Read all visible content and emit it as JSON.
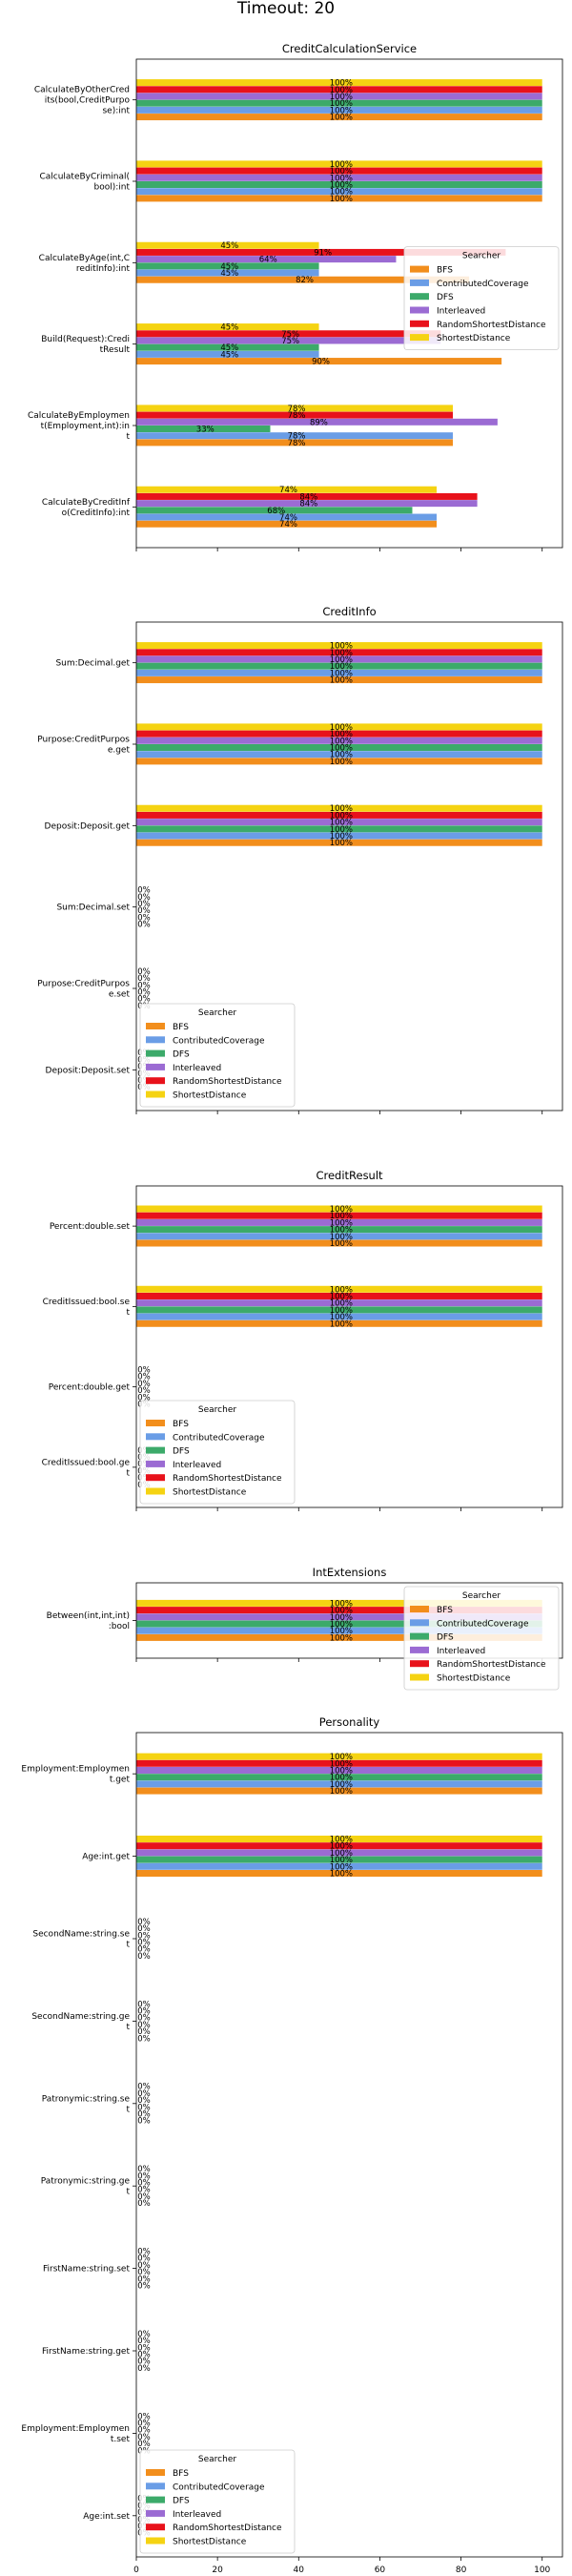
{
  "suptitle": "Timeout: 20",
  "legend_title": "Searcher",
  "series_names": [
    "BFS",
    "ContributedCoverage",
    "DFS",
    "Interleaved",
    "RandomShortestDistance",
    "ShortestDistance"
  ],
  "series_colors": [
    "#f28e1c",
    "#6a9de6",
    "#3caa6a",
    "#9b6bd3",
    "#e8121b",
    "#f5d312"
  ],
  "chart_data": [
    {
      "type": "bar",
      "title": "CreditCalculationService",
      "legend_position": "center-right",
      "categories": [
        "CalculateByOtherCredits(bool,CreditPurpose):int",
        "CalculateByCriminal(bool):int",
        "CalculateByAge(int,CreditInfo):int",
        "Build(Request):CreditResult",
        "CalculateByEmployment(Employment,int):int",
        "CalculateByCreditInfo(CreditInfo):int"
      ],
      "category_lines": [
        [
          "CalculateByOtherCred",
          "its(bool,CreditPurpo",
          "se):int"
        ],
        [
          "CalculateByCriminal(",
          "bool):int"
        ],
        [
          "CalculateByAge(int,C",
          "reditInfo):int"
        ],
        [
          "Build(Request):Credi",
          "tResult"
        ],
        [
          "CalculateByEmploymen",
          "t(Employment,int):in",
          "t"
        ],
        [
          "CalculateByCreditInf",
          "o(CreditInfo):int"
        ]
      ],
      "series": [
        {
          "name": "BFS",
          "values": [
            100,
            100,
            82,
            90,
            78,
            74
          ]
        },
        {
          "name": "ContributedCoverage",
          "values": [
            100,
            100,
            45,
            45,
            78,
            74
          ]
        },
        {
          "name": "DFS",
          "values": [
            100,
            100,
            45,
            45,
            33,
            68
          ]
        },
        {
          "name": "Interleaved",
          "values": [
            100,
            100,
            64,
            75,
            89,
            84
          ]
        },
        {
          "name": "RandomShortestDistance",
          "values": [
            100,
            100,
            91,
            75,
            78,
            84
          ]
        },
        {
          "name": "ShortestDistance",
          "values": [
            100,
            100,
            45,
            45,
            78,
            74
          ]
        }
      ]
    },
    {
      "type": "bar",
      "title": "CreditInfo",
      "legend_position": "lower-left",
      "categories": [
        "Sum:Decimal.get",
        "Purpose:CreditPurpose.get",
        "Deposit:Deposit.get",
        "Sum:Decimal.set",
        "Purpose:CreditPurpose.set",
        "Deposit:Deposit.set"
      ],
      "category_lines": [
        [
          "Sum:Decimal.get"
        ],
        [
          "Purpose:CreditPurpos",
          "e.get"
        ],
        [
          "Deposit:Deposit.get"
        ],
        [
          "Sum:Decimal.set"
        ],
        [
          "Purpose:CreditPurpos",
          "e.set"
        ],
        [
          "Deposit:Deposit.set"
        ]
      ],
      "series": [
        {
          "name": "BFS",
          "values": [
            100,
            100,
            100,
            0,
            0,
            0
          ]
        },
        {
          "name": "ContributedCoverage",
          "values": [
            100,
            100,
            100,
            0,
            0,
            0
          ]
        },
        {
          "name": "DFS",
          "values": [
            100,
            100,
            100,
            0,
            0,
            0
          ]
        },
        {
          "name": "Interleaved",
          "values": [
            100,
            100,
            100,
            0,
            0,
            0
          ]
        },
        {
          "name": "RandomShortestDistance",
          "values": [
            100,
            100,
            100,
            0,
            0,
            0
          ]
        },
        {
          "name": "ShortestDistance",
          "values": [
            100,
            100,
            100,
            0,
            0,
            0
          ]
        }
      ]
    },
    {
      "type": "bar",
      "title": "CreditResult",
      "legend_position": "lower-left",
      "categories": [
        "Percent:double.set",
        "CreditIssued:bool.set",
        "Percent:double.get",
        "CreditIssued:bool.get"
      ],
      "category_lines": [
        [
          "Percent:double.set"
        ],
        [
          "CreditIssued:bool.se",
          "t"
        ],
        [
          "Percent:double.get"
        ],
        [
          "CreditIssued:bool.ge",
          "t"
        ]
      ],
      "series": [
        {
          "name": "BFS",
          "values": [
            100,
            100,
            0,
            0
          ]
        },
        {
          "name": "ContributedCoverage",
          "values": [
            100,
            100,
            0,
            0
          ]
        },
        {
          "name": "DFS",
          "values": [
            100,
            100,
            0,
            0
          ]
        },
        {
          "name": "Interleaved",
          "values": [
            100,
            100,
            0,
            0
          ]
        },
        {
          "name": "RandomShortestDistance",
          "values": [
            100,
            100,
            0,
            0
          ]
        },
        {
          "name": "ShortestDistance",
          "values": [
            100,
            100,
            0,
            0
          ]
        }
      ]
    },
    {
      "type": "bar",
      "title": "IntExtensions",
      "legend_position": "upper-right",
      "categories": [
        "Between(int,int,int):bool"
      ],
      "category_lines": [
        [
          "Between(int,int,int)",
          ":bool"
        ]
      ],
      "series": [
        {
          "name": "BFS",
          "values": [
            100
          ]
        },
        {
          "name": "ContributedCoverage",
          "values": [
            100
          ]
        },
        {
          "name": "DFS",
          "values": [
            100
          ]
        },
        {
          "name": "Interleaved",
          "values": [
            100
          ]
        },
        {
          "name": "RandomShortestDistance",
          "values": [
            100
          ]
        },
        {
          "name": "ShortestDistance",
          "values": [
            100
          ]
        }
      ]
    },
    {
      "type": "bar",
      "title": "Personality",
      "legend_position": "lower-left",
      "xticks": [
        0,
        20,
        40,
        60,
        80,
        100
      ],
      "categories": [
        "Employment:Employment.get",
        "Age:int.get",
        "SecondName:string.set",
        "SecondName:string.get",
        "Patronymic:string.set",
        "Patronymic:string.get",
        "FirstName:string.set",
        "FirstName:string.get",
        "Employment:Employment.set",
        "Age:int.set"
      ],
      "category_lines": [
        [
          "Employment:Employmen",
          "t.get"
        ],
        [
          "Age:int.get"
        ],
        [
          "SecondName:string.se",
          "t"
        ],
        [
          "SecondName:string.ge",
          "t"
        ],
        [
          "Patronymic:string.se",
          "t"
        ],
        [
          "Patronymic:string.ge",
          "t"
        ],
        [
          "FirstName:string.set"
        ],
        [
          "FirstName:string.get"
        ],
        [
          "Employment:Employmen",
          "t.set"
        ],
        [
          "Age:int.set"
        ]
      ],
      "series": [
        {
          "name": "BFS",
          "values": [
            100,
            100,
            0,
            0,
            0,
            0,
            0,
            0,
            0,
            0
          ]
        },
        {
          "name": "ContributedCoverage",
          "values": [
            100,
            100,
            0,
            0,
            0,
            0,
            0,
            0,
            0,
            0
          ]
        },
        {
          "name": "DFS",
          "values": [
            100,
            100,
            0,
            0,
            0,
            0,
            0,
            0,
            0,
            0
          ]
        },
        {
          "name": "Interleaved",
          "values": [
            100,
            100,
            0,
            0,
            0,
            0,
            0,
            0,
            0,
            0
          ]
        },
        {
          "name": "RandomShortestDistance",
          "values": [
            100,
            100,
            0,
            0,
            0,
            0,
            0,
            0,
            0,
            0
          ]
        },
        {
          "name": "ShortestDistance",
          "values": [
            100,
            100,
            0,
            0,
            0,
            0,
            0,
            0,
            0,
            0
          ]
        }
      ]
    }
  ]
}
